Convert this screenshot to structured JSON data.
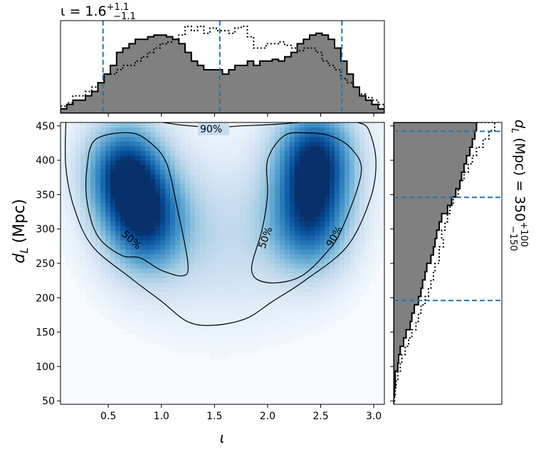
{
  "chart_data": {
    "type": "heatmap",
    "main_panel": {
      "xlabel": "ι",
      "ylabel": "d",
      "ylabel_sub": "L",
      "ylabel_unit": "(Mpc)",
      "xlim": [
        0.05,
        3.1
      ],
      "ylim": [
        45,
        455
      ],
      "xticks": [
        0.5,
        1.0,
        1.5,
        2.0,
        2.5,
        3.0
      ],
      "xtick_labels": [
        "0.5",
        "1.0",
        "1.5",
        "2.0",
        "2.5",
        "3.0"
      ],
      "yticks": [
        50,
        100,
        150,
        200,
        250,
        300,
        350,
        400,
        450
      ],
      "ytick_labels": [
        "50",
        "100",
        "150",
        "200",
        "250",
        "300",
        "350",
        "400",
        "450"
      ],
      "colormap": "Blues",
      "density_peaks": [
        {
          "x": 0.65,
          "y": 385,
          "weight": 1.0
        },
        {
          "x": 0.85,
          "y": 310,
          "weight": 0.85
        },
        {
          "x": 2.45,
          "y": 405,
          "weight": 1.05
        },
        {
          "x": 2.4,
          "y": 310,
          "weight": 0.8
        }
      ],
      "contours": [
        {
          "level": "50%",
          "label_text": "50%"
        },
        {
          "level": "50%",
          "label_text": "50%"
        },
        {
          "level": "90%",
          "label_text": "90%"
        },
        {
          "level": "90%",
          "label_text": "90%"
        }
      ],
      "contour_90_outline": [
        [
          0.1,
          455
        ],
        [
          0.1,
          390
        ],
        [
          0.18,
          330
        ],
        [
          0.35,
          275
        ],
        [
          0.7,
          230
        ],
        [
          1.0,
          195
        ],
        [
          1.25,
          165
        ],
        [
          1.5,
          160
        ],
        [
          1.8,
          170
        ],
        [
          2.05,
          195
        ],
        [
          2.35,
          225
        ],
        [
          2.75,
          275
        ],
        [
          2.97,
          345
        ],
        [
          3.02,
          400
        ],
        [
          2.95,
          445
        ],
        [
          2.85,
          455
        ]
      ],
      "contour_90_top": [
        [
          0.3,
          455
        ],
        [
          0.55,
          458
        ],
        [
          0.95,
          456
        ],
        [
          1.2,
          451
        ],
        [
          1.5,
          448
        ],
        [
          1.75,
          450
        ],
        [
          2.05,
          452
        ],
        [
          2.3,
          455
        ]
      ],
      "contour_50_left": [
        [
          0.38,
          430
        ],
        [
          0.7,
          440
        ],
        [
          0.9,
          425
        ],
        [
          1.05,
          395
        ],
        [
          1.15,
          330
        ],
        [
          1.25,
          250
        ],
        [
          1.2,
          232
        ],
        [
          1.0,
          240
        ],
        [
          0.8,
          258
        ],
        [
          0.62,
          262
        ],
        [
          0.4,
          290
        ],
        [
          0.3,
          340
        ],
        [
          0.3,
          390
        ]
      ],
      "contour_50_right": [
        [
          2.15,
          435
        ],
        [
          2.35,
          440
        ],
        [
          2.6,
          435
        ],
        [
          2.8,
          415
        ],
        [
          2.88,
          380
        ],
        [
          2.7,
          300
        ],
        [
          2.55,
          265
        ],
        [
          2.3,
          230
        ],
        [
          2.0,
          222
        ],
        [
          1.85,
          240
        ],
        [
          1.95,
          300
        ],
        [
          2.0,
          350
        ],
        [
          2.0,
          400
        ]
      ]
    },
    "top_panel": {
      "title": "ι = 1.6",
      "title_sup": "+1.1",
      "title_sub": "−1.1",
      "bin_edges": [
        0.05,
        3.1
      ],
      "filled_hist": [
        0.05,
        0.1,
        0.15,
        0.15,
        0.2,
        0.25,
        0.35,
        0.45,
        0.55,
        0.7,
        0.75,
        0.8,
        0.85,
        0.85,
        0.88,
        0.9,
        0.9,
        0.88,
        0.85,
        0.8,
        0.7,
        0.6,
        0.55,
        0.5,
        0.5,
        0.5,
        0.45,
        0.5,
        0.55,
        0.55,
        0.6,
        0.55,
        0.6,
        0.6,
        0.62,
        0.6,
        0.65,
        0.7,
        0.8,
        0.85,
        0.9,
        0.92,
        0.9,
        0.85,
        0.75,
        0.6,
        0.45,
        0.3,
        0.2,
        0.15,
        0.1,
        0.05
      ],
      "dotted_hist": [
        0.08,
        0.12,
        0.2,
        0.2,
        0.25,
        0.3,
        0.35,
        0.45,
        0.45,
        0.5,
        0.55,
        0.55,
        0.6,
        0.65,
        0.7,
        0.75,
        0.8,
        0.82,
        0.85,
        0.9,
        1.0,
        0.95,
        1.0,
        0.92,
        0.98,
        0.95,
        0.95,
        0.92,
        0.98,
        1.0,
        0.88,
        0.75,
        0.75,
        0.8,
        0.8,
        0.82,
        0.78,
        0.75,
        0.72,
        0.75,
        0.75,
        0.7,
        0.6,
        0.55,
        0.5,
        0.4,
        0.35,
        0.3,
        0.22,
        0.18,
        0.15,
        0.1
      ],
      "quantile_lines": [
        0.45,
        1.55,
        2.7
      ]
    },
    "right_panel": {
      "label": "d",
      "label_sub": "L",
      "label_unit": "(Mpc) = 350",
      "label_sup": "+100",
      "label_sub2": "−150",
      "quantile_lines": [
        196,
        346,
        442
      ],
      "filled_hist": [
        0.0,
        0.01,
        0.02,
        0.02,
        0.05,
        0.06,
        0.08,
        0.12,
        0.15,
        0.2,
        0.22,
        0.25,
        0.3,
        0.33,
        0.35,
        0.38,
        0.4,
        0.45,
        0.48,
        0.5,
        0.52,
        0.55,
        0.58,
        0.65,
        0.7,
        0.75,
        0.8,
        0.82,
        0.85,
        0.88,
        0.92,
        0.95,
        0.98,
        1.0
      ],
      "dotted_hist": [
        0.01,
        0.02,
        0.03,
        0.05,
        0.08,
        0.1,
        0.14,
        0.18,
        0.22,
        0.27,
        0.3,
        0.33,
        0.38,
        0.42,
        0.45,
        0.48,
        0.5,
        0.55,
        0.55,
        0.6,
        0.58,
        0.62,
        0.65,
        0.68,
        0.72,
        0.78,
        0.8,
        0.85,
        0.9,
        0.95,
        1.0,
        1.08,
        1.15,
        1.22
      ]
    },
    "quantile_line_color": "#1f77b4",
    "hist_fill_color": "#808080"
  }
}
